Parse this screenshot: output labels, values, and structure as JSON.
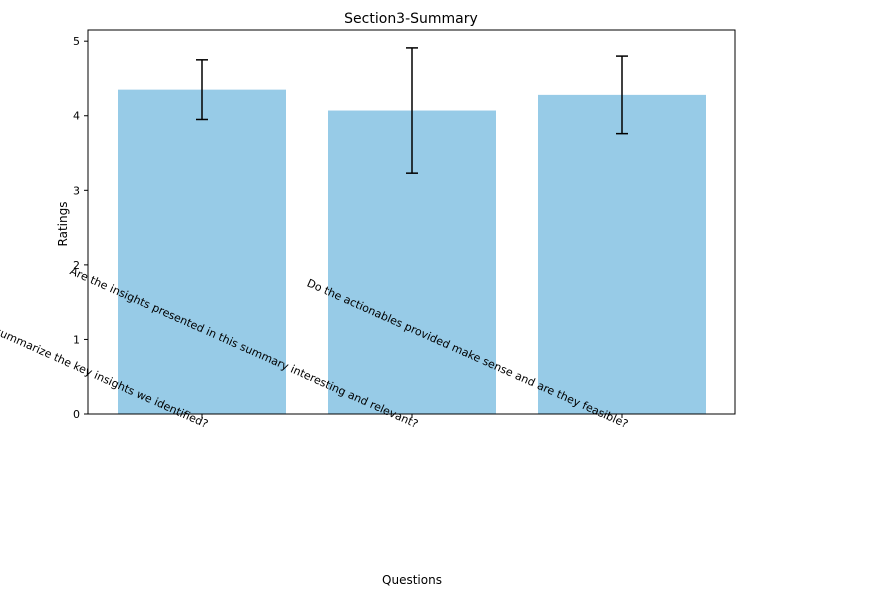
{
  "chart_data": {
    "type": "bar",
    "title": "Section3-Summary",
    "xlabel": "Questions",
    "ylabel": "Ratings",
    "categories": [
      "Does the flag accurately summarize the key insights we identified?",
      "Are the insights presented in this summary interesting and relevant?",
      "Do the actionables provided make sense and are they feasible?"
    ],
    "values": [
      4.35,
      4.07,
      4.28
    ],
    "error": [
      0.4,
      0.84,
      0.52
    ],
    "ylim": [
      0,
      5.15
    ],
    "yticks": [
      "0",
      "1",
      "2",
      "3",
      "4",
      "5"
    ],
    "bar_color": "#97cbe7",
    "error_color": "#000000",
    "grid": false
  }
}
